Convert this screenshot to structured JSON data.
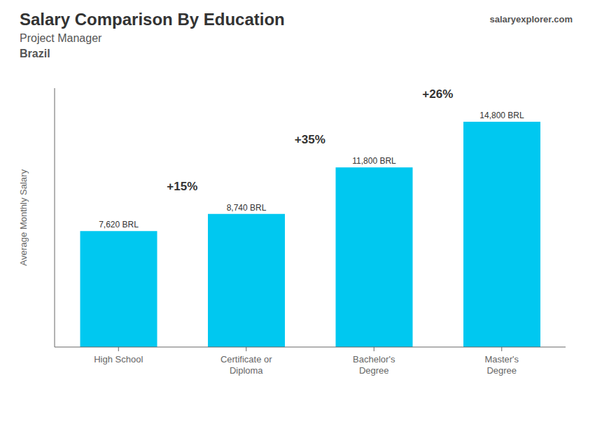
{
  "chart_data": {
    "type": "bar",
    "title": "Salary Comparison By Education",
    "subtitle": "Project Manager",
    "annotations": [
      "salaryexplorer.com",
      "Brazil",
      "+15%",
      "+35%",
      "+26%"
    ],
    "ylabel": "Average Monthly Salary",
    "categories": [
      "High School",
      "Certificate or\nDiploma",
      "Bachelor's\nDegree",
      "Master's\nDegree"
    ],
    "values": [
      7620,
      8740,
      11800,
      14800
    ],
    "value_labels": [
      "7,620 BRL",
      "8,740 BRL",
      "11,800 BRL",
      "14,800 BRL"
    ],
    "data_labels": true,
    "color": "#00c8f0",
    "ylim": [
      0,
      17000
    ],
    "tick_labels": "x",
    "grid": false
  }
}
